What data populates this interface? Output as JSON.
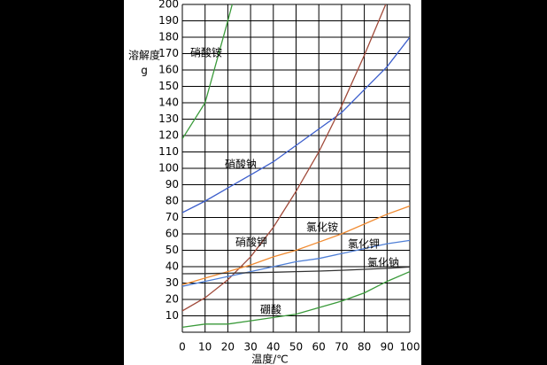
{
  "chart_data": {
    "type": "line",
    "y_label_line1": "溶解度",
    "y_label_line2": "g",
    "x_label": "温度/℃",
    "x": [
      0,
      10,
      20,
      30,
      40,
      50,
      60,
      70,
      80,
      90,
      100
    ],
    "series": [
      {
        "name": "硝酸铵",
        "color": "#3a9a3a",
        "values": [
          118,
          140,
          190,
          242,
          null,
          null,
          null,
          null,
          null,
          null,
          null
        ]
      },
      {
        "name": "硝酸钠",
        "color": "#3d5fcc",
        "values": [
          73,
          80,
          88,
          96,
          104,
          114,
          124,
          134,
          148,
          162,
          180
        ]
      },
      {
        "name": "硝酸钾",
        "color": "#a04a3a",
        "values": [
          13,
          21,
          32,
          46,
          64,
          86,
          110,
          138,
          169,
          202,
          246
        ]
      },
      {
        "name": "氯化铵",
        "color": "#f08a30",
        "values": [
          29,
          33,
          37,
          41,
          46,
          50,
          55,
          60,
          66,
          72,
          77
        ]
      },
      {
        "name": "氯化钾",
        "color": "#4f7fd6",
        "values": [
          28,
          31,
          34,
          37,
          40,
          43,
          45,
          48,
          51,
          54,
          56
        ]
      },
      {
        "name": "氯化钠",
        "color": "#333333",
        "values": [
          35.7,
          35.8,
          36,
          36.3,
          36.6,
          37,
          37.3,
          37.8,
          38.4,
          39,
          39.8
        ]
      },
      {
        "name": "硼酸",
        "color": "#3a9a3a",
        "values": [
          3,
          5,
          5,
          7,
          9,
          11,
          15,
          19,
          24,
          31,
          37
        ]
      }
    ],
    "xlim": [
      0,
      100
    ],
    "xticks": [
      0,
      10,
      20,
      30,
      40,
      50,
      60,
      70,
      80,
      90,
      100
    ],
    "ylim": [
      0,
      200
    ],
    "yticks": [
      10,
      20,
      30,
      40,
      50,
      60,
      70,
      80,
      90,
      100,
      110,
      120,
      130,
      140,
      150,
      160,
      170,
      180,
      190,
      200
    ],
    "grid": true
  }
}
